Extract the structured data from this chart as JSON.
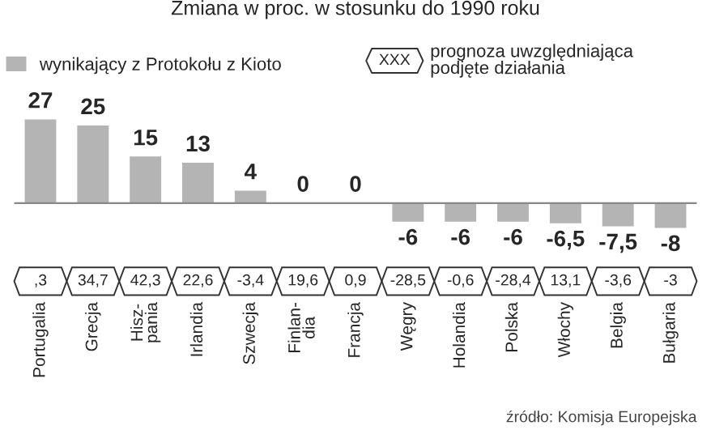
{
  "chart_data": {
    "type": "bar",
    "title": "Zmiana w proc. w stosunku do 1990 roku",
    "categories": [
      "Portugalia",
      "Grecja",
      "Hisz-\npania",
      "Irlandia",
      "Szwecja",
      "Finlan-\ndia",
      "Francja",
      "Węgry",
      "Holandia",
      "Polska",
      "Włochy",
      "Belgia",
      "Bułgaria"
    ],
    "series": [
      {
        "name": "wynikający z Protokołu z Kioto",
        "color": "#b4b4b4",
        "values": [
          27,
          25,
          15,
          13,
          4,
          0,
          0,
          -6,
          -6,
          -6,
          -6.5,
          -7.5,
          -8
        ],
        "value_labels": [
          "27",
          "25",
          "15",
          "13",
          "4",
          "0",
          "0",
          "-6",
          "-6",
          "-6",
          "-6,5",
          "-7,5",
          "-8"
        ]
      }
    ],
    "annotations": [
      ",3",
      "34,7",
      "42,3",
      "22,6",
      "-3,4",
      "19,6",
      "0,9",
      "-28,5",
      "-0,6",
      "-28,4",
      "13,1",
      "-3,6",
      "-3",
      "XXX",
      "prognoza uwzględniająca\npodjęte działania",
      "źródło: Komisja Europejska"
    ],
    "legend": "top"
  }
}
